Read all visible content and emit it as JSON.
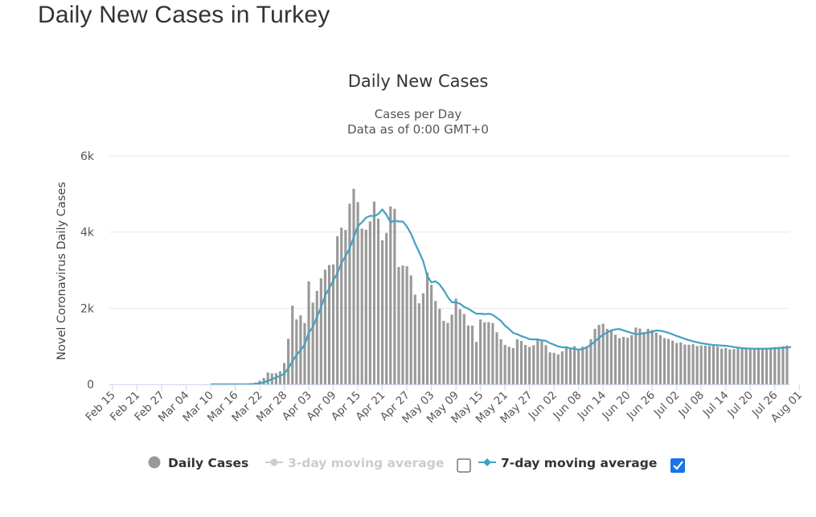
{
  "page": {
    "title": "Daily New Cases in Turkey"
  },
  "colors": {
    "bars": "#999999",
    "line": "#41a2c0",
    "grid": "#e6e6e6",
    "checkbox": "#1a73e8"
  },
  "legend": {
    "items": [
      {
        "label": "Daily Cases",
        "enabled": true,
        "icon": "circle-marker-icon"
      },
      {
        "label": "3-day moving average",
        "enabled": false,
        "checked": false,
        "icon": "line-marker-icon"
      },
      {
        "label": "7-day moving average",
        "enabled": true,
        "checked": true,
        "icon": "line-diamond-marker-icon"
      }
    ]
  },
  "chart_data": {
    "type": "bar",
    "title": "Daily New Cases",
    "subtitle_lines": [
      "Cases per Day",
      "Data as of 0:00 GMT+0"
    ],
    "xlabel": "",
    "ylabel": "Novel Coronavirus Daily Cases",
    "ylim": [
      0,
      6000
    ],
    "y_ticks": [
      0,
      2000,
      4000,
      6000
    ],
    "y_tick_labels": [
      "0",
      "2k",
      "4k",
      "6k"
    ],
    "grid": true,
    "legend_position": "bottom",
    "start_date": "2020-02-15",
    "x_tick_labels": [
      "Feb 15",
      "Feb 21",
      "Feb 27",
      "Mar 04",
      "Mar 10",
      "Mar 16",
      "Mar 22",
      "Mar 28",
      "Apr 03",
      "Apr 09",
      "Apr 15",
      "Apr 21",
      "Apr 27",
      "May 03",
      "May 09",
      "May 15",
      "May 21",
      "May 27",
      "Jun 02",
      "Jun 08",
      "Jun 14",
      "Jun 20",
      "Jun 26",
      "Jul 02",
      "Jul 08",
      "Jul 14",
      "Jul 20",
      "Jul 26",
      "Aug 01"
    ],
    "series": [
      {
        "name": "Daily Cases",
        "type": "bar",
        "values": [
          0,
          0,
          0,
          0,
          0,
          0,
          0,
          0,
          0,
          0,
          0,
          0,
          0,
          0,
          0,
          0,
          0,
          0,
          0,
          0,
          0,
          0,
          0,
          0,
          0,
          0,
          1,
          0,
          0,
          0,
          0,
          1,
          4,
          12,
          29,
          47,
          98,
          168,
          311,
          289,
          293,
          343,
          561,
          1196,
          2069,
          1704,
          1815,
          1610,
          2704,
          2148,
          2456,
          2786,
          3013,
          3135,
          3148,
          3892,
          4117,
          4056,
          4747,
          5138,
          4789,
          4093,
          4062,
          4281,
          4801,
          4353,
          3783,
          3977,
          4674,
          4611,
          3083,
          3122,
          3104,
          2861,
          2357,
          2131,
          2392,
          2936,
          2615,
          2188,
          1983,
          1670,
          1614,
          1832,
          2253,
          1977,
          1848,
          1546,
          1542,
          1114,
          1704,
          1626,
          1635,
          1610,
          1368,
          1186,
          1035,
          987,
          952,
          1182,
          1141,
          1035,
          983,
          1029,
          1186,
          1141,
          1028,
          839,
          827,
          786,
          867,
          989,
          930,
          1000,
          915,
          987,
          1000,
          1186,
          1459,
          1562,
          1592,
          1459,
          1429,
          1304,
          1214,
          1248,
          1226,
          1293,
          1492,
          1466,
          1374,
          1458,
          1429,
          1356,
          1293,
          1214,
          1192,
          1148,
          1086,
          1101,
          1046,
          1041,
          1053,
          1008,
          1024,
          1016,
          1011,
          1012,
          992,
          936,
          952,
          919,
          926,
          956,
          949,
          936,
          938,
          934,
          963,
          957,
          962,
          968,
          980,
          981,
          1001,
          1021
        ]
      },
      {
        "name": "7-day moving average",
        "type": "line",
        "values": [
          0,
          0,
          0,
          0,
          0,
          0,
          0,
          0,
          0,
          0,
          0,
          0,
          0,
          0,
          0,
          0,
          0,
          0,
          0,
          0,
          0,
          0,
          0,
          0,
          0,
          0,
          0,
          0,
          0,
          0,
          0,
          1,
          1,
          2,
          7,
          13,
          27,
          51,
          94,
          137,
          177,
          223,
          276,
          424,
          607,
          771,
          894,
          1047,
          1354,
          1507,
          1770,
          2024,
          2326,
          2524,
          2727,
          2922,
          3188,
          3367,
          3576,
          3865,
          4161,
          4255,
          4378,
          4427,
          4420,
          4474,
          4597,
          4453,
          4259,
          4300,
          4281,
          4276,
          4148,
          3959,
          3703,
          3476,
          3232,
          2843,
          2678,
          2708,
          2624,
          2476,
          2295,
          2158,
          2153,
          2118,
          2036,
          1987,
          1919,
          1855,
          1856,
          1843,
          1854,
          1827,
          1749,
          1669,
          1542,
          1455,
          1352,
          1317,
          1266,
          1231,
          1187,
          1181,
          1180,
          1158,
          1143,
          1082,
          1042,
          996,
          975,
          975,
          942,
          936,
          909,
          932,
          967,
          1044,
          1122,
          1228,
          1301,
          1364,
          1418,
          1444,
          1453,
          1417,
          1382,
          1348,
          1317,
          1325,
          1343,
          1357,
          1382,
          1415,
          1409,
          1384,
          1354,
          1312,
          1271,
          1235,
          1194,
          1160,
          1129,
          1104,
          1082,
          1064,
          1047,
          1034,
          1029,
          1020,
          1012,
          999,
          981,
          966,
          951,
          945,
          939,
          935,
          935,
          935,
          937,
          940,
          946,
          953,
          961,
          969,
          981
        ]
      }
    ]
  }
}
